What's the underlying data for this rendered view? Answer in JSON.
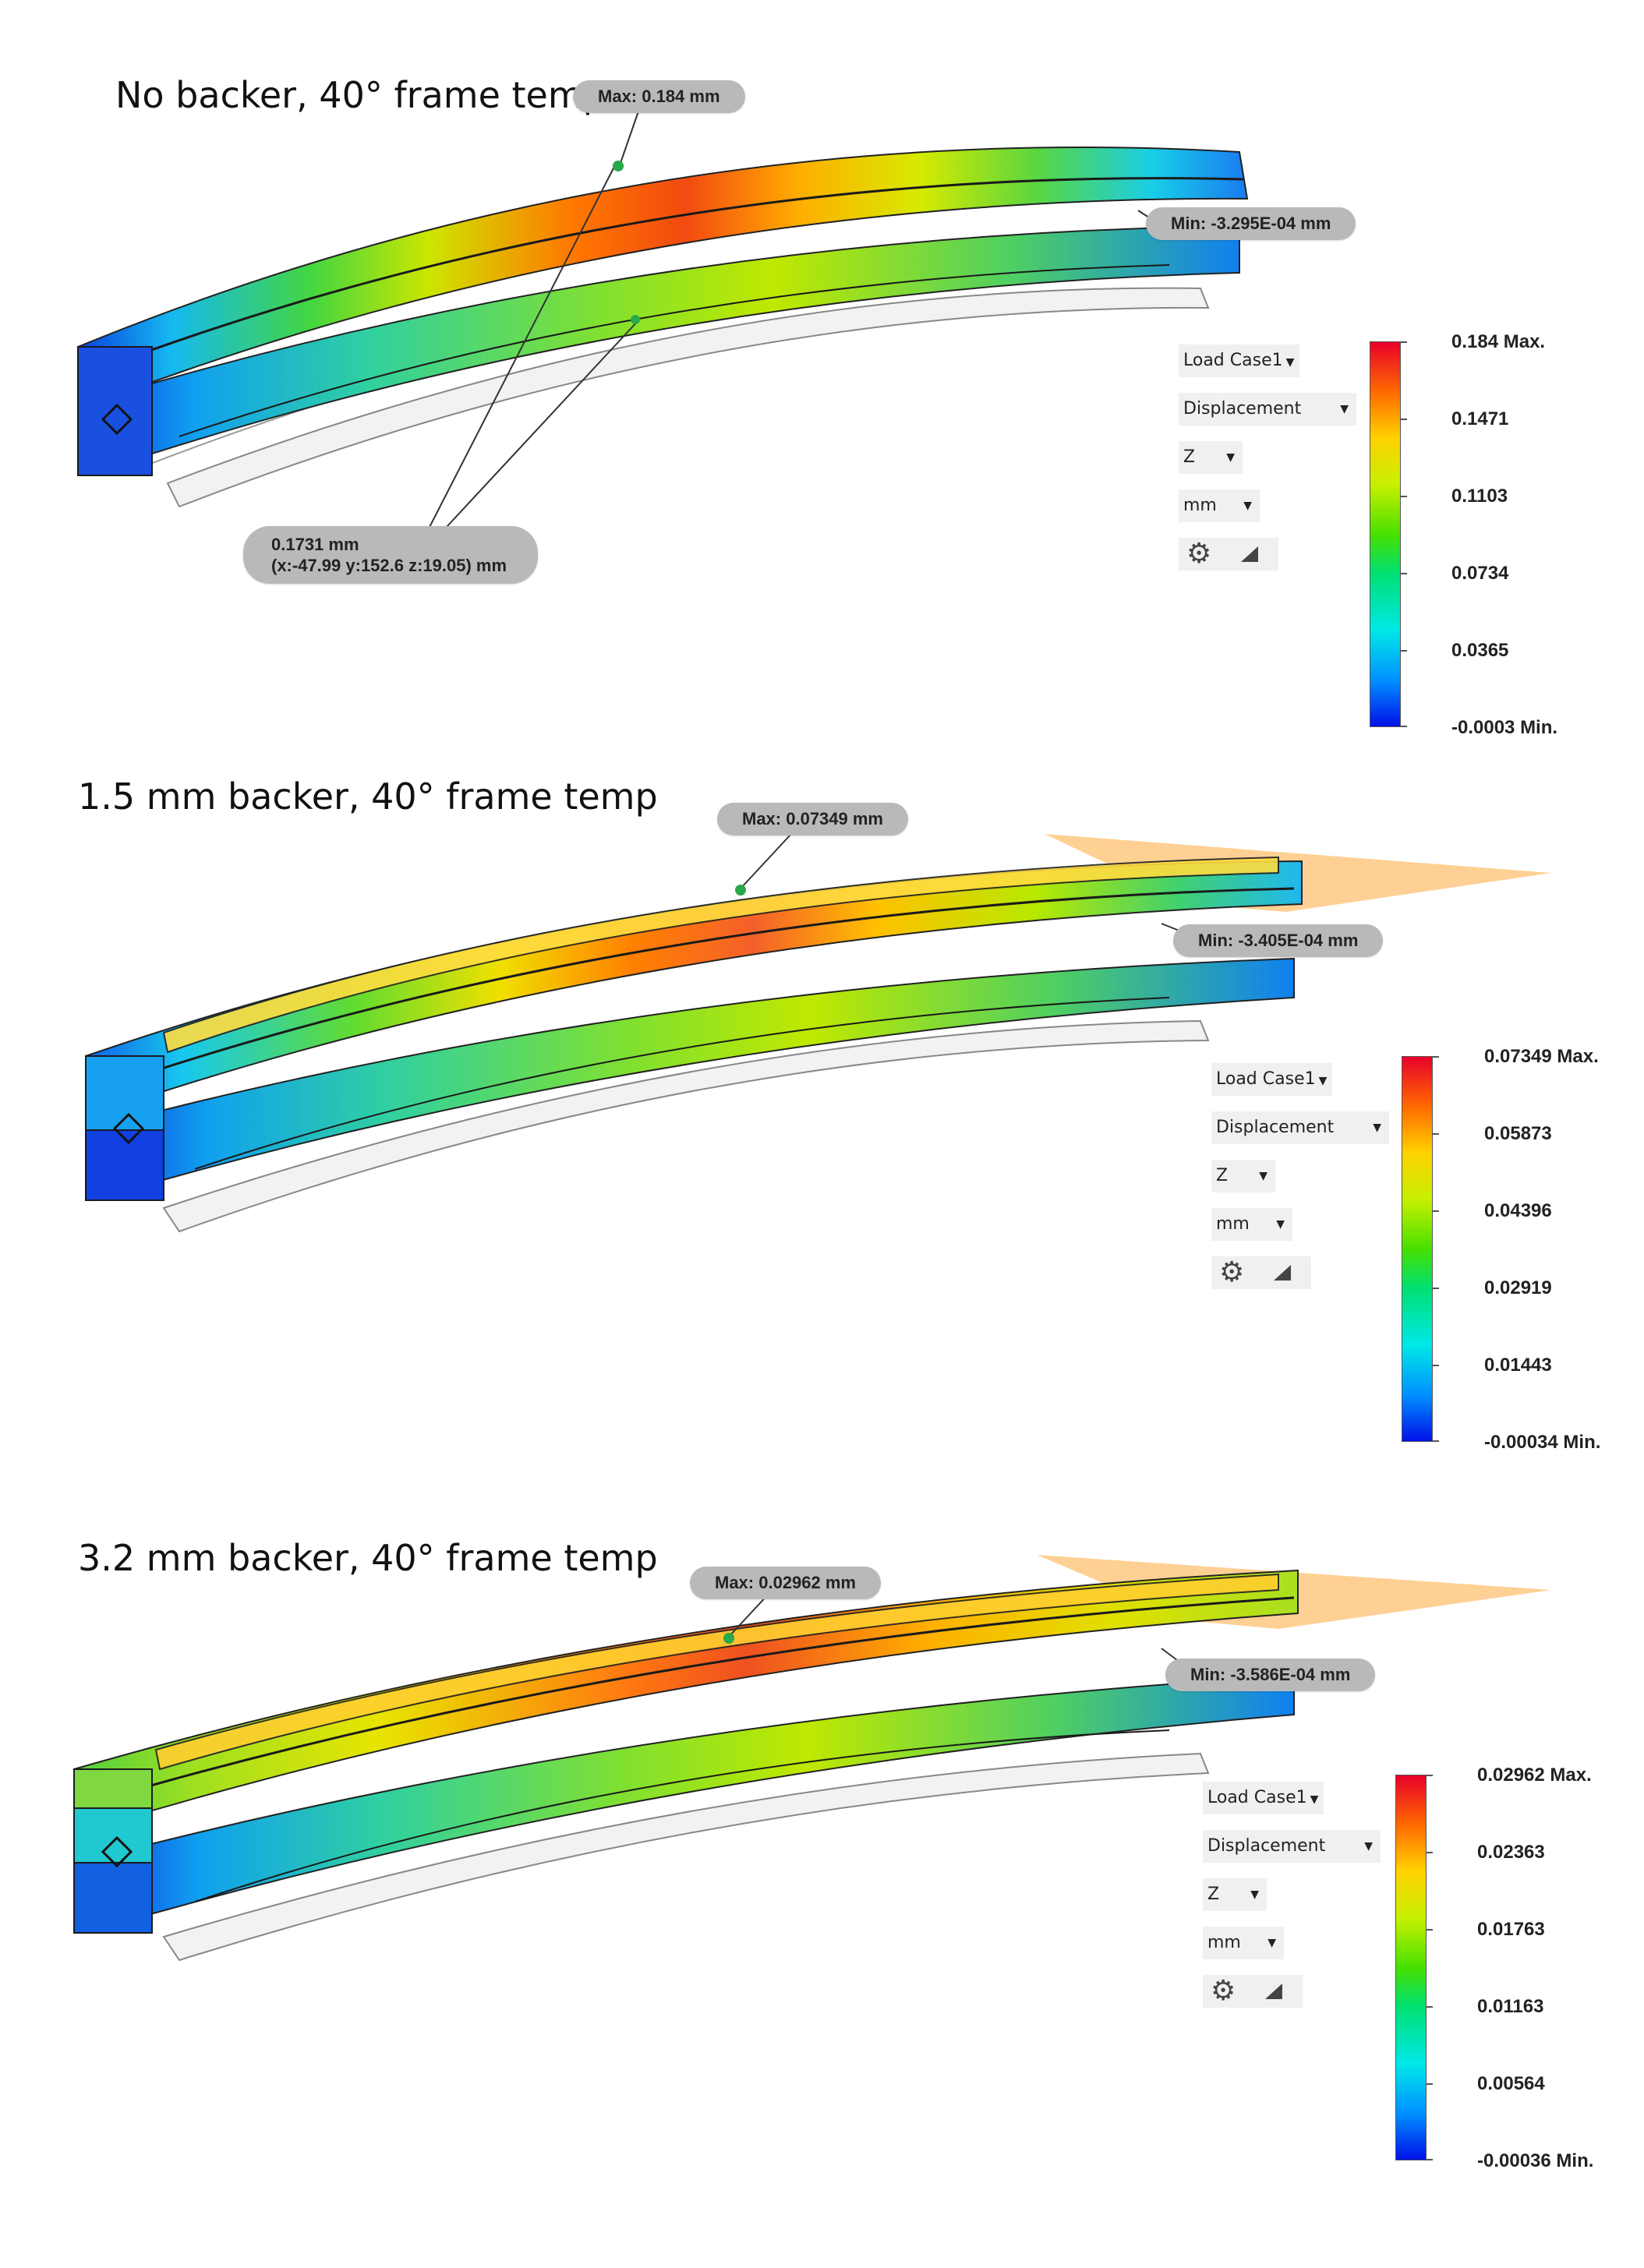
{
  "panels": [
    {
      "title": "No backer, 40° frame temp",
      "max_callout": "Max: 0.184 mm",
      "min_callout": "Min: -3.295E-04 mm",
      "probe": {
        "value": "0.1731 mm",
        "coords": "(x:-47.99 y:152.6 z:19.05) mm"
      },
      "controls": {
        "load_case": "Load Case1",
        "result": "Displacement",
        "component": "Z",
        "unit": "mm"
      },
      "legend": [
        "0.184 Max.",
        "0.1471",
        "0.1103",
        "0.0734",
        "0.0365",
        "-0.0003 Min."
      ],
      "has_plane": false
    },
    {
      "title": "1.5 mm backer, 40° frame temp",
      "max_callout": "Max: 0.07349 mm",
      "min_callout": "Min: -3.405E-04 mm",
      "controls": {
        "load_case": "Load Case1",
        "result": "Displacement",
        "component": "Z",
        "unit": "mm"
      },
      "legend": [
        "0.07349 Max.",
        "0.05873",
        "0.04396",
        "0.02919",
        "0.01443",
        "-0.00034 Min."
      ],
      "has_plane": true
    },
    {
      "title": "3.2 mm backer, 40° frame temp",
      "max_callout": "Max: 0.02962 mm",
      "min_callout": "Min: -3.586E-04 mm",
      "controls": {
        "load_case": "Load Case1",
        "result": "Displacement",
        "component": "Z",
        "unit": "mm"
      },
      "legend": [
        "0.02962 Max.",
        "0.02363",
        "0.01763",
        "0.01163",
        "0.00564",
        "-0.00036 Min."
      ],
      "has_plane": true
    }
  ],
  "icons": {
    "settings": "gear-icon",
    "display": "triangle-icon",
    "dropdown": "caret-down-icon"
  },
  "colors": {
    "max": "#e8002a",
    "mid": "#48e000",
    "min": "#0010e8",
    "callout_bg": "#b9b9b9",
    "plane": "#ffc070"
  }
}
